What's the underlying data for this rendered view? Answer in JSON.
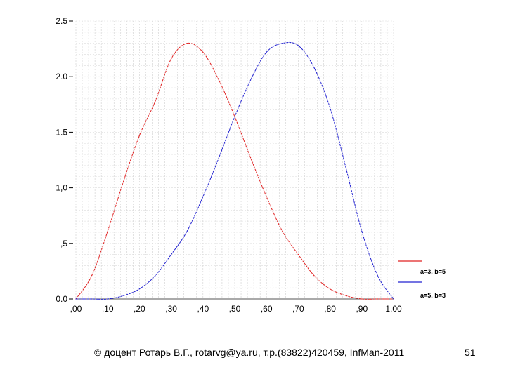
{
  "chart_data": {
    "type": "line",
    "x_ticks": [
      ",00",
      ",10",
      ",20",
      ",30",
      ",40",
      ",50",
      ",60",
      ",70",
      ",80",
      ",90",
      "1,00"
    ],
    "y_ticks": [
      "0.0",
      ",5",
      "1,0",
      "1.5",
      "2.0",
      "2.5"
    ],
    "xlim": [
      0,
      1
    ],
    "ylim": [
      0,
      2.5
    ],
    "grid": true,
    "legend_position": "bottom-right",
    "x": [
      0.0,
      0.05,
      0.1,
      0.15,
      0.2,
      0.25,
      0.3,
      0.35,
      0.4,
      0.45,
      0.5,
      0.55,
      0.6,
      0.65,
      0.7,
      0.75,
      0.8,
      0.85,
      0.9,
      0.95,
      1.0
    ],
    "series": [
      {
        "name": "a=3, b=5",
        "color": "#e02020",
        "values": [
          0.0,
          0.21,
          0.61,
          1.06,
          1.47,
          1.78,
          2.16,
          2.3,
          2.22,
          1.97,
          1.64,
          1.27,
          0.92,
          0.61,
          0.4,
          0.21,
          0.09,
          0.03,
          0.0,
          0.0,
          0.0
        ]
      },
      {
        "name": "a=5, b=3",
        "color": "#2020d0",
        "values": [
          0.0,
          0.0,
          0.0,
          0.03,
          0.09,
          0.21,
          0.4,
          0.61,
          0.92,
          1.27,
          1.64,
          1.97,
          2.22,
          2.3,
          2.28,
          2.08,
          1.72,
          1.18,
          0.61,
          0.21,
          0.0
        ]
      }
    ]
  },
  "footer": {
    "text": "© доцент Ротарь В.Г., rotarvg@ya.ru, т.р.(83822)420459, InfMan-2011",
    "page_number": "51"
  }
}
